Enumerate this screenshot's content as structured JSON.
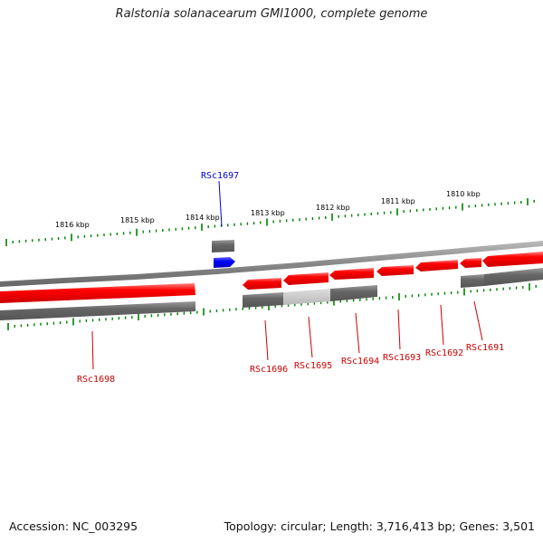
{
  "title": "Ralstonia solanacearum GMI1000, complete genome",
  "footer": {
    "accession": "Accession: NC_003295",
    "stats": "Topology: circular; Length: 3,716,413 bp; Genes: 3,501"
  },
  "scale": {
    "unit": "kbp",
    "ticks": [
      "1816 kbp",
      "1815 kbp",
      "1814 kbp",
      "1813 kbp",
      "1812 kbp",
      "1811 kbp",
      "1810 kbp"
    ]
  },
  "genes": [
    {
      "label": "RSc1697",
      "color": "#0000cc",
      "strand": "forward"
    },
    {
      "label": "RSc1698",
      "color": "#cc0000",
      "strand": "reverse"
    },
    {
      "label": "RSc1696",
      "color": "#cc0000",
      "strand": "reverse"
    },
    {
      "label": "RSc1695",
      "color": "#cc0000",
      "strand": "reverse"
    },
    {
      "label": "RSc1694",
      "color": "#cc0000",
      "strand": "reverse"
    },
    {
      "label": "RSc1693",
      "color": "#cc0000",
      "strand": "reverse"
    },
    {
      "label": "RSc1692",
      "color": "#cc0000",
      "strand": "reverse"
    },
    {
      "label": "RSc1691",
      "color": "#cc0000",
      "strand": "reverse"
    }
  ],
  "colors": {
    "forward_gene": "#0000ff",
    "reverse_gene": "#ee0000",
    "backbone": "#888888",
    "tick": "#008000",
    "gray_track": "#666666"
  }
}
